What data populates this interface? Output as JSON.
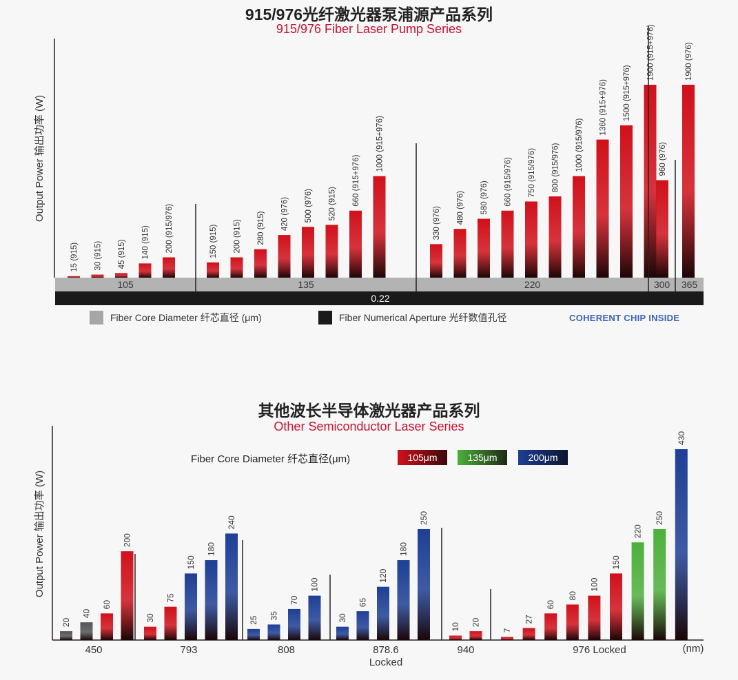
{
  "chart_data": [
    {
      "type": "bar",
      "title": "915/976光纤激光器泵浦源产品系列",
      "subtitle": "915/976 Fiber Laser Pump Series",
      "ylabel": "Output Power 输出功率 (W)",
      "ylim": [
        0,
        2000
      ],
      "color": "#d0111b",
      "groups": [
        {
          "label": "105",
          "bars": [
            {
              "value": 15,
              "label": "15 (915)"
            },
            {
              "value": 30,
              "label": "30 (915)"
            },
            {
              "value": 45,
              "label": "45 (915)"
            },
            {
              "value": 140,
              "label": "140 (915)"
            },
            {
              "value": 200,
              "label": "200 (915/976)"
            }
          ]
        },
        {
          "label": "135",
          "bars": [
            {
              "value": 150,
              "label": "150 (915)"
            },
            {
              "value": 200,
              "label": "200 (915)"
            },
            {
              "value": 280,
              "label": "280 (915)"
            },
            {
              "value": 420,
              "label": "420 (976)"
            },
            {
              "value": 500,
              "label": "500 (976)"
            },
            {
              "value": 520,
              "label": "520 (915)"
            },
            {
              "value": 660,
              "label": "660 (915+976)"
            },
            {
              "value": 1000,
              "label": "1000 (915+976)"
            }
          ]
        },
        {
          "label": "220",
          "bars": [
            {
              "value": 330,
              "label": "330 (976)"
            },
            {
              "value": 480,
              "label": "480 (976)"
            },
            {
              "value": 580,
              "label": "580 (976)"
            },
            {
              "value": 660,
              "label": "660 (915/976)"
            },
            {
              "value": 750,
              "label": "750 (915/976)"
            },
            {
              "value": 800,
              "label": "800 (915/976)"
            },
            {
              "value": 1000,
              "label": "1000 (915/976)"
            },
            {
              "value": 1360,
              "label": "1360 (915+976)"
            },
            {
              "value": 1500,
              "label": "1500 (915+976)"
            },
            {
              "value": 1900,
              "label": "1900 (915+976)"
            }
          ]
        },
        {
          "label": "300",
          "bars": [
            {
              "value": 960,
              "label": "960 (976)"
            }
          ]
        },
        {
          "label": "365",
          "bars": [
            {
              "value": 1900,
              "label": "1900 (976)"
            }
          ]
        }
      ],
      "na_label": "0.22",
      "legend": [
        {
          "label": "Fiber Core Diameter  纤芯直径 (μm)",
          "color": "#a6a6a6"
        },
        {
          "label": "Fiber Numerical Aperture  光纤数值孔径",
          "color": "#1a1a1a"
        }
      ],
      "brand": "COHERENT CHIP INSIDE"
    },
    {
      "type": "bar",
      "title": "其他波长半导体激光器产品系列",
      "subtitle": "Other Semiconductor Laser Series",
      "ylabel": "Output Power 输出功率 (W)",
      "xunit": "(nm)",
      "ylim": [
        0,
        450
      ],
      "legend_title": "Fiber Core Diameter  纤芯直径(μm)",
      "legend": [
        {
          "label": "105μm",
          "color": "#d0111b"
        },
        {
          "label": "135μm",
          "color": "#4db03c"
        },
        {
          "label": "200μm",
          "color": "#1e3f95"
        }
      ],
      "colors": {
        "gray": "#555555",
        "red": "#d0111b",
        "green": "#4db03c",
        "blue": "#1e3f95"
      },
      "groups": [
        {
          "label": "450",
          "bars": [
            {
              "value": 20,
              "color": "gray"
            },
            {
              "value": 40,
              "color": "gray"
            },
            {
              "value": 60,
              "color": "red"
            },
            {
              "value": 200,
              "color": "red"
            }
          ]
        },
        {
          "label": "793",
          "bars": [
            {
              "value": 30,
              "color": "red"
            },
            {
              "value": 75,
              "color": "red"
            },
            {
              "value": 150,
              "color": "blue"
            },
            {
              "value": 180,
              "color": "blue"
            },
            {
              "value": 240,
              "color": "blue"
            }
          ]
        },
        {
          "label": "808",
          "bars": [
            {
              "value": 25,
              "color": "blue"
            },
            {
              "value": 35,
              "color": "blue"
            },
            {
              "value": 70,
              "color": "blue"
            },
            {
              "value": 100,
              "color": "blue"
            }
          ]
        },
        {
          "label": "878.6",
          "label2": "Locked",
          "bars": [
            {
              "value": 30,
              "color": "blue"
            },
            {
              "value": 65,
              "color": "blue"
            },
            {
              "value": 120,
              "color": "blue"
            },
            {
              "value": 180,
              "color": "blue"
            },
            {
              "value": 250,
              "color": "blue"
            }
          ]
        },
        {
          "label": "940",
          "bars": [
            {
              "value": 10,
              "color": "red"
            },
            {
              "value": 20,
              "color": "red"
            }
          ]
        },
        {
          "label": "976 Locked",
          "bars": [
            {
              "value": 7,
              "color": "red"
            },
            {
              "value": 27,
              "color": "red"
            },
            {
              "value": 60,
              "color": "red"
            },
            {
              "value": 80,
              "color": "red"
            },
            {
              "value": 100,
              "color": "red"
            },
            {
              "value": 150,
              "color": "red"
            },
            {
              "value": 220,
              "color": "green"
            },
            {
              "value": 250,
              "color": "green"
            },
            {
              "value": 430,
              "color": "blue"
            }
          ]
        }
      ]
    }
  ]
}
